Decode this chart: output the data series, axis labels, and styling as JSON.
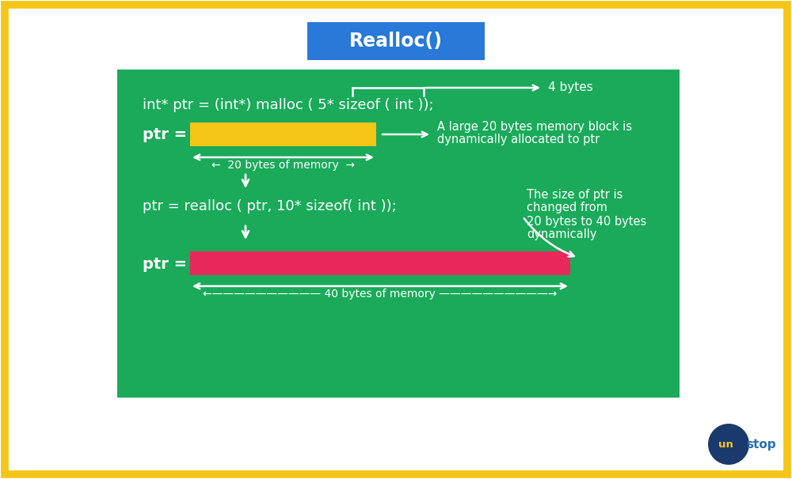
{
  "bg_color": "#ffffff",
  "border_color": "#f5c518",
  "green_bg": "#1aaa5a",
  "title_box_color": "#2979d8",
  "title_text": "Realloc()",
  "title_text_color": "#ffffff",
  "yellow_bar_color": "#f5c518",
  "pink_bar_color": "#e8275a",
  "white": "#ffffff",
  "code_line1": "int* ptr = (int*) malloc ( 5* sizeof ( int ));",
  "code_line2": "ptr = realloc ( ptr, 10* sizeof( int ));",
  "label_20bytes": "←  20 bytes of memory  →",
  "label_40bytes": "←—————————— 40 bytes of memory ——————————→",
  "label_4bytes": "4 bytes",
  "note1_line1": "A large 20 bytes memory block is",
  "note1_line2": "dynamically allocated to ptr",
  "note2_line1": "The size of ptr is",
  "note2_line2": "changed from",
  "note2_line3": "20 bytes to 40 bytes",
  "note2_line4": "dynamically",
  "ptr_label": "ptr =",
  "unstop_circle_color": "#1a3a6d",
  "unstop_text_color_un": "#f5c518",
  "unstop_text_color_stop": "#2b6cb0"
}
